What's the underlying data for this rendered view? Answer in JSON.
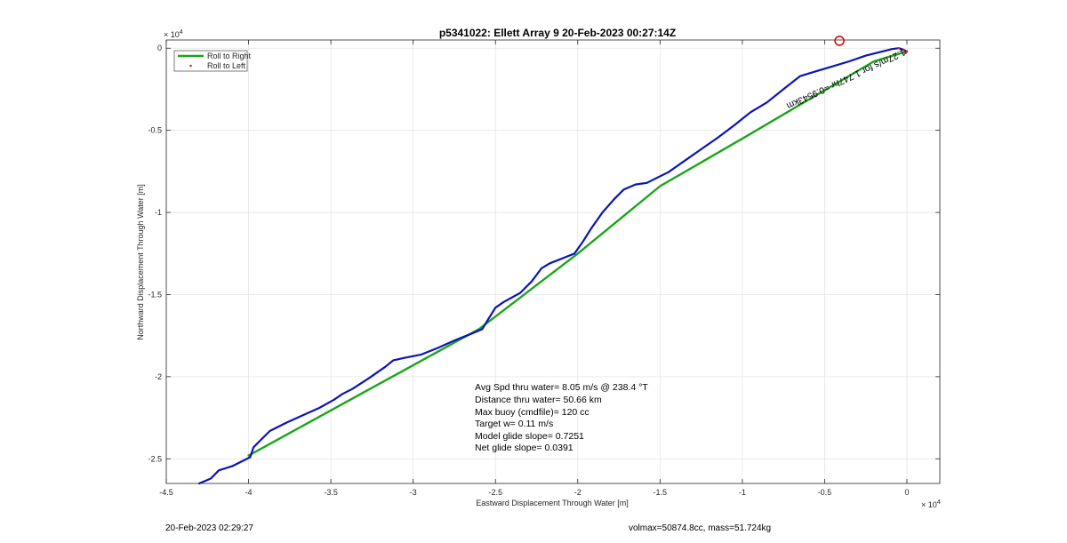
{
  "chart_data": {
    "type": "line",
    "title": "p5341022: Ellett Array 9 20-Feb-2023 00:27:14Z",
    "xlabel": "Eastward Displacement Through Water [m]",
    "ylabel": "Northward Displacement Through Water [m]",
    "x_exponent": "× 10",
    "x_exponent_power": "4",
    "y_exponent": "× 10",
    "y_exponent_power": "4",
    "xlim": [
      -4.5,
      0.2
    ],
    "ylim": [
      -2.65,
      0.05
    ],
    "xticks": [
      -4.5,
      -4,
      -3.5,
      -3,
      -2.5,
      -2,
      -1.5,
      -1,
      -0.5,
      0
    ],
    "xtick_labels": [
      "-4.5",
      "-4",
      "-3.5",
      "-3",
      "-2.5",
      "-2",
      "-1.5",
      "-1",
      "-0.5",
      "0"
    ],
    "yticks": [
      0,
      -0.5,
      -1,
      -1.5,
      -2,
      -2.5
    ],
    "ytick_labels": [
      "0",
      "-0.5",
      "-1",
      "-1.5",
      "-2",
      "-2.5"
    ],
    "grid": true,
    "legend_position": "top-left",
    "legend": [
      {
        "label": "Roll to Right",
        "color": "#1aa51a",
        "style": "line"
      },
      {
        "label": "Roll to Left",
        "color": "#e02020",
        "style": "dot"
      }
    ],
    "series": [
      {
        "color": "#0a14b8",
        "x": [
          -4.3,
          -4.23,
          -4.18,
          -4.1,
          -4.03,
          -3.99,
          -3.97,
          -3.93,
          -3.87,
          -3.77,
          -3.67,
          -3.57,
          -3.48,
          -3.43,
          -3.37,
          -3.27,
          -3.17,
          -3.12,
          -3.05,
          -2.95,
          -2.85,
          -2.75,
          -2.65,
          -2.58,
          -2.55,
          -2.5,
          -2.45,
          -2.35,
          -2.28,
          -2.22,
          -2.17,
          -2.12,
          -2.07,
          -2.02,
          -1.97,
          -1.92,
          -1.85,
          -1.78,
          -1.72,
          -1.65,
          -1.58,
          -1.52,
          -1.45,
          -1.35,
          -1.25,
          -1.15,
          -1.05,
          -0.95,
          -0.85,
          -0.75,
          -0.65,
          -0.55,
          -0.45,
          -0.35,
          -0.25,
          -0.15,
          -0.09,
          -0.05,
          -0.02,
          0.0,
          -0.01
        ],
        "y": [
          -2.65,
          -2.62,
          -2.57,
          -2.545,
          -2.51,
          -2.49,
          -2.43,
          -2.39,
          -2.33,
          -2.28,
          -2.235,
          -2.19,
          -2.14,
          -2.105,
          -2.075,
          -2.01,
          -1.94,
          -1.9,
          -1.885,
          -1.865,
          -1.825,
          -1.78,
          -1.74,
          -1.71,
          -1.66,
          -1.58,
          -1.545,
          -1.49,
          -1.42,
          -1.34,
          -1.31,
          -1.29,
          -1.27,
          -1.25,
          -1.18,
          -1.1,
          -1.0,
          -0.92,
          -0.86,
          -0.83,
          -0.82,
          -0.79,
          -0.755,
          -0.685,
          -0.615,
          -0.545,
          -0.47,
          -0.39,
          -0.33,
          -0.25,
          -0.17,
          -0.14,
          -0.11,
          -0.08,
          -0.045,
          -0.02,
          -0.005,
          0.0,
          -0.01,
          -0.02,
          -0.03
        ]
      },
      {
        "color": "#1aa51a",
        "x": [
          -4.0,
          -2.6,
          -2.0,
          -1.5,
          -1.0,
          -0.2,
          0.0
        ],
        "y": [
          -2.48,
          -1.71,
          -1.25,
          -0.84,
          -0.55,
          -0.08,
          -0.02
        ]
      }
    ],
    "marker": {
      "x": -0.41,
      "y": 0.045,
      "color": "#d01010"
    },
    "rotated_label": "1.27m/s for 1.747hr =0.9543km",
    "stats": [
      "Avg Spd thru water=  8.05 m/s @ 238.4 °T",
      "Distance thru water= 50.66 km",
      "Max buoy (cmdfile)= 120 cc",
      "Target w= 0.11 m/s",
      "Model glide slope= 0.7251",
      "Net glide slope= 0.0391"
    ]
  },
  "footer": {
    "left": "20-Feb-2023 02:29:27",
    "right": "volmax=50874.8cc, mass=51.724kg"
  }
}
